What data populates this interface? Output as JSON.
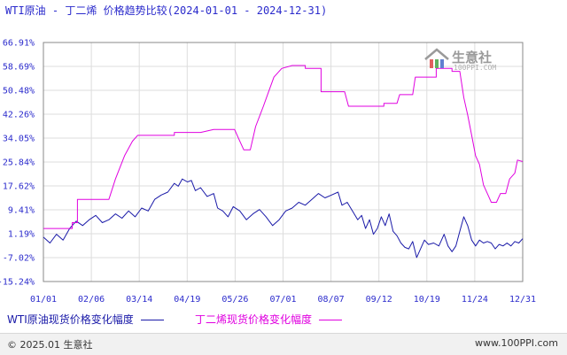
{
  "title": "WTI原油 - 丁二烯 价格趋势比较(2024-01-01 - 2024-12-31)",
  "colors": {
    "wti": "#1a1aa8",
    "butadiene": "#e000e0",
    "text": "#2b2bcc",
    "grid": "#dddddd",
    "axis": "#888888"
  },
  "legend": {
    "wti_label": "WTI原油现货价格变化幅度",
    "butadiene_label": "丁二烯现货价格变化幅度"
  },
  "watermark": {
    "main": "生意社",
    "sub": "100PPI.COM"
  },
  "footer": {
    "left": "© 2025.01 生意社",
    "right": "www.100PPI.com"
  },
  "chart_data": {
    "type": "line",
    "title": "WTI原油 - 丁二烯 价格趋势比较(2024-01-01 - 2024-12-31)",
    "xlabel": "",
    "ylabel": "",
    "unit": "%",
    "ylim": [
      -15.24,
      66.91
    ],
    "grid": true,
    "legend_position": "bottom",
    "y_ticks": [
      "66.91%",
      "58.69%",
      "50.48%",
      "42.26%",
      "34.05%",
      "25.84%",
      "17.62%",
      "9.41%",
      "1.19%",
      "-7.02%",
      "-15.24%"
    ],
    "x_ticks": [
      "01/01",
      "02/06",
      "03/14",
      "04/19",
      "05/26",
      "07/01",
      "08/07",
      "09/12",
      "10/19",
      "11/24",
      "12/31"
    ],
    "series": [
      {
        "name": "WTI原油现货价格变化幅度",
        "color": "#1a1aa8",
        "points": [
          [
            0,
            0.0
          ],
          [
            5,
            -2.0
          ],
          [
            10,
            1.0
          ],
          [
            15,
            -1.0
          ],
          [
            20,
            3.0
          ],
          [
            25,
            5.5
          ],
          [
            30,
            4.0
          ],
          [
            35,
            6.0
          ],
          [
            40,
            7.5
          ],
          [
            45,
            5.0
          ],
          [
            50,
            6.0
          ],
          [
            55,
            8.0
          ],
          [
            60,
            6.5
          ],
          [
            65,
            9.0
          ],
          [
            70,
            7.0
          ],
          [
            75,
            10.0
          ],
          [
            80,
            9.0
          ],
          [
            85,
            13.0
          ],
          [
            90,
            14.5
          ],
          [
            95,
            15.5
          ],
          [
            100,
            18.5
          ],
          [
            103,
            17.5
          ],
          [
            106,
            20.0
          ],
          [
            110,
            19.0
          ],
          [
            113,
            19.5
          ],
          [
            116,
            16.0
          ],
          [
            120,
            17.0
          ],
          [
            125,
            14.0
          ],
          [
            130,
            15.0
          ],
          [
            133,
            10.0
          ],
          [
            137,
            9.0
          ],
          [
            141,
            7.0
          ],
          [
            145,
            10.5
          ],
          [
            150,
            9.0
          ],
          [
            155,
            6.0
          ],
          [
            160,
            8.0
          ],
          [
            165,
            9.5
          ],
          [
            170,
            7.0
          ],
          [
            175,
            4.0
          ],
          [
            180,
            6.0
          ],
          [
            185,
            9.0
          ],
          [
            190,
            10.0
          ],
          [
            195,
            12.0
          ],
          [
            200,
            11.0
          ],
          [
            205,
            13.0
          ],
          [
            210,
            15.0
          ],
          [
            215,
            13.5
          ],
          [
            220,
            14.5
          ],
          [
            225,
            15.5
          ],
          [
            228,
            11.0
          ],
          [
            232,
            12.0
          ],
          [
            236,
            9.0
          ],
          [
            240,
            6.0
          ],
          [
            243,
            7.5
          ],
          [
            246,
            3.0
          ],
          [
            249,
            6.0
          ],
          [
            252,
            1.0
          ],
          [
            255,
            3.0
          ],
          [
            258,
            7.0
          ],
          [
            261,
            4.0
          ],
          [
            264,
            8.0
          ],
          [
            267,
            2.0
          ],
          [
            270,
            0.5
          ],
          [
            273,
            -2.0
          ],
          [
            276,
            -3.5
          ],
          [
            279,
            -4.0
          ],
          [
            282,
            -1.5
          ],
          [
            285,
            -7.0
          ],
          [
            288,
            -4.0
          ],
          [
            291,
            -1.0
          ],
          [
            294,
            -2.5
          ],
          [
            298,
            -2.0
          ],
          [
            302,
            -3.0
          ],
          [
            306,
            1.0
          ],
          [
            309,
            -3.0
          ],
          [
            312,
            -5.0
          ],
          [
            315,
            -3.0
          ],
          [
            318,
            2.0
          ],
          [
            321,
            7.0
          ],
          [
            324,
            4.0
          ],
          [
            327,
            -1.0
          ],
          [
            330,
            -3.0
          ],
          [
            333,
            -1.0
          ],
          [
            336,
            -2.0
          ],
          [
            339,
            -1.5
          ],
          [
            342,
            -2.0
          ],
          [
            345,
            -4.0
          ],
          [
            348,
            -2.5
          ],
          [
            351,
            -3.0
          ],
          [
            354,
            -2.0
          ],
          [
            357,
            -3.0
          ],
          [
            360,
            -1.5
          ],
          [
            363,
            -2.0
          ],
          [
            366,
            -0.5
          ]
        ]
      },
      {
        "name": "丁二烯现货价格变化幅度",
        "color": "#e000e0",
        "points": [
          [
            0,
            3.0
          ],
          [
            22,
            3.0
          ],
          [
            22,
            5.0
          ],
          [
            26,
            5.0
          ],
          [
            26,
            13.0
          ],
          [
            50,
            13.0
          ],
          [
            55,
            20.0
          ],
          [
            62,
            28.0
          ],
          [
            68,
            33.0
          ],
          [
            72,
            35.0
          ],
          [
            100,
            35.0
          ],
          [
            100,
            36.0
          ],
          [
            120,
            36.0
          ],
          [
            130,
            37.0
          ],
          [
            146,
            37.0
          ],
          [
            149,
            34.0
          ],
          [
            153,
            30.0
          ],
          [
            158,
            30.0
          ],
          [
            162,
            38.0
          ],
          [
            168,
            45.0
          ],
          [
            172,
            50.0
          ],
          [
            176,
            55.0
          ],
          [
            182,
            58.0
          ],
          [
            190,
            59.0
          ],
          [
            200,
            59.0
          ],
          [
            200,
            58.0
          ],
          [
            212,
            58.0
          ],
          [
            212,
            50.0
          ],
          [
            230,
            50.0
          ],
          [
            233,
            45.0
          ],
          [
            260,
            45.0
          ],
          [
            260,
            46.0
          ],
          [
            270,
            46.0
          ],
          [
            272,
            49.0
          ],
          [
            282,
            49.0
          ],
          [
            284,
            55.0
          ],
          [
            300,
            55.0
          ],
          [
            300,
            58.0
          ],
          [
            312,
            58.0
          ],
          [
            312,
            57.0
          ],
          [
            318,
            57.0
          ],
          [
            321,
            48.0
          ],
          [
            324,
            42.0
          ],
          [
            327,
            35.0
          ],
          [
            330,
            28.0
          ],
          [
            333,
            25.0
          ],
          [
            336,
            18.0
          ],
          [
            340,
            14.0
          ],
          [
            342,
            12.0
          ],
          [
            346,
            12.0
          ],
          [
            349,
            15.0
          ],
          [
            353,
            15.0
          ],
          [
            356,
            20.0
          ],
          [
            360,
            22.0
          ],
          [
            362,
            26.5
          ],
          [
            366,
            26.0
          ]
        ]
      }
    ]
  }
}
